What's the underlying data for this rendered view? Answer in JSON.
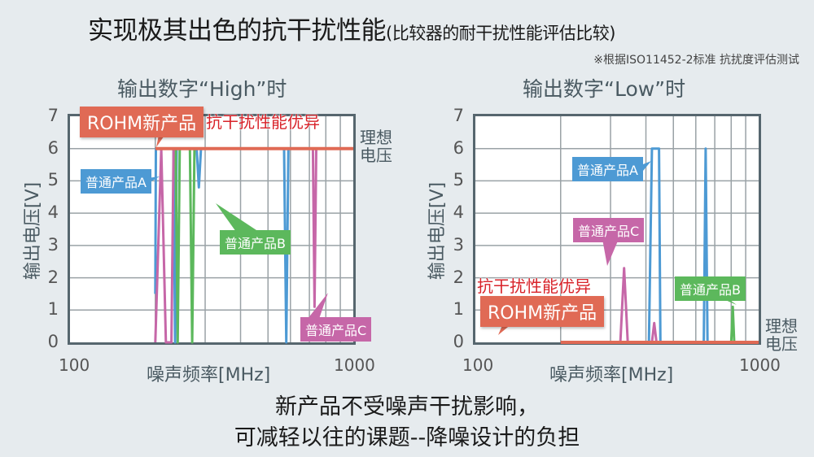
{
  "title": {
    "main": "实现极其出色的抗干扰性能",
    "sub": "(比较器的耐干扰性能评估比较)"
  },
  "note": "※根据ISO11452-2标准 抗扰度评估测试",
  "colors": {
    "rohm": "#e06a55",
    "good_text": "#d8232a",
    "product_a": "#4d9ad4",
    "product_b": "#5cb85c",
    "product_c": "#c667a8",
    "axis": "#56666e",
    "grid": "#9aa2a6",
    "background": "#e6ebee"
  },
  "left_chart": {
    "title": "输出数字“High”时",
    "ylabel": "输出电压[V]",
    "xlabel": "噪声频率[MHz]",
    "x_min_label": "100",
    "x_max_label": "1000",
    "y_ticks": [
      "7",
      "6",
      "5",
      "4",
      "3",
      "2",
      "1",
      "0"
    ],
    "ideal_label_1": "理想",
    "ideal_label_2": "电压",
    "rohm_label": "ROHM新产品",
    "good_label": "抗干扰性能优异",
    "product_a": "普通产品A",
    "product_b": "普通产品B",
    "product_c": "普通产品C"
  },
  "right_chart": {
    "title": "输出数字“Low”时",
    "ylabel": "输出电压[V]",
    "xlabel": "噪声频率[MHz]",
    "x_min_label": "100",
    "x_max_label": "1000",
    "y_ticks": [
      "7",
      "6",
      "5",
      "4",
      "3",
      "2",
      "1",
      "0"
    ],
    "ideal_label_1": "理想",
    "ideal_label_2": "电压",
    "rohm_label": "ROHM新产品",
    "good_label": "抗干扰性能优异",
    "product_a": "普通产品A",
    "product_b": "普通产品B",
    "product_c": "普通产品C"
  },
  "bottom": {
    "line1": "新产品不受噪声干扰影响，",
    "line2": "可减轻以往的课题--降噪设计的负担"
  },
  "chart_data": [
    {
      "type": "line",
      "title": "输出数字“High”时",
      "xlabel": "噪声频率[MHz]",
      "ylabel": "输出电压[V]",
      "xscale": "log",
      "xlim": [
        100,
        1000
      ],
      "ylim": [
        0,
        7
      ],
      "grid": true,
      "series": [
        {
          "name": "ROHM新产品",
          "x": [
            200,
            1000
          ],
          "y": [
            6,
            6
          ]
        },
        {
          "name": "普通产品A",
          "x": [
            200,
            201,
            202,
            232,
            235,
            238,
            280,
            285,
            290,
            570,
            580,
            590
          ],
          "y": [
            1.5,
            6,
            6,
            6,
            0,
            6,
            6,
            4.8,
            6,
            6,
            0,
            6
          ]
        },
        {
          "name": "普通产品B",
          "x": [
            236,
            240,
            244,
            265,
            270,
            275
          ],
          "y": [
            6,
            0,
            6,
            6,
            0,
            6
          ]
        },
        {
          "name": "普通产品C",
          "x": [
            200,
            210,
            218,
            228,
            232,
            720,
            730,
            740
          ],
          "y": [
            0,
            6,
            0,
            0,
            6,
            6,
            1.1,
            6
          ]
        }
      ],
      "annotations": [
        "ROHM新产品",
        "抗干扰性能优异",
        "理想电压"
      ]
    },
    {
      "type": "line",
      "title": "输出数字“Low”时",
      "xlabel": "噪声频率[MHz]",
      "ylabel": "输出电压[V]",
      "xscale": "log",
      "xlim": [
        100,
        1000
      ],
      "ylim": [
        0,
        7
      ],
      "grid": true,
      "series": [
        {
          "name": "ROHM新产品",
          "x": [
            200,
            1000
          ],
          "y": [
            0,
            0
          ]
        },
        {
          "name": "普通产品A",
          "x": [
            410,
            420,
            430,
            440,
            445,
            450,
            640,
            650,
            660
          ],
          "y": [
            0,
            6,
            6,
            6,
            6,
            0,
            0,
            6,
            0
          ]
        },
        {
          "name": "普通产品B",
          "x": [
            800,
            810,
            820
          ],
          "y": [
            0,
            1.1,
            0
          ]
        },
        {
          "name": "普通产品C",
          "x": [
            325,
            335,
            345,
            420,
            428,
            436
          ],
          "y": [
            0,
            2.3,
            0,
            0,
            0.6,
            0
          ]
        }
      ],
      "annotations": [
        "ROHM新产品",
        "抗干扰性能优异",
        "理想电压"
      ]
    }
  ]
}
